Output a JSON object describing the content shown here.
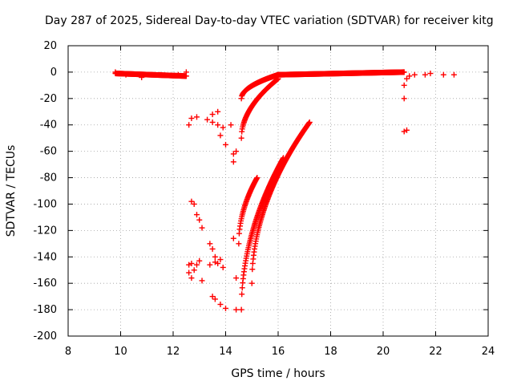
{
  "chart_data": {
    "type": "scatter",
    "title": "Day 287 of 2025, Sidereal Day-to-day VTEC variation (SDTVAR) for receiver kitg",
    "xlabel": "GPS time / hours",
    "ylabel": "SDTVAR / TECUs",
    "xlim": [
      8,
      24
    ],
    "ylim": [
      -200,
      20
    ],
    "xticks": [
      8,
      10,
      12,
      14,
      16,
      18,
      20,
      22,
      24
    ],
    "yticks": [
      20,
      0,
      -20,
      -40,
      -60,
      -80,
      -100,
      -120,
      -140,
      -160,
      -180,
      -200
    ],
    "grid": true,
    "marker": "+",
    "color": "#ff0000",
    "segments": [
      {
        "name": "near-zero band early",
        "x": [
          9.8,
          12.5
        ],
        "y": [
          -1,
          -3
        ]
      },
      {
        "name": "near-zero band late",
        "x": [
          16.0,
          20.8
        ],
        "y": [
          -2,
          0
        ]
      },
      {
        "name": "recovery arc upper",
        "x": [
          14.6,
          16.0
        ],
        "y": [
          -20,
          -2
        ]
      },
      {
        "name": "recovery arc middle",
        "x": [
          14.6,
          16.0
        ],
        "y": [
          -50,
          -5
        ]
      },
      {
        "name": "descending arc 1",
        "x": [
          14.5,
          15.2
        ],
        "y": [
          -130,
          -80
        ]
      },
      {
        "name": "descending arc 2",
        "x": [
          14.6,
          16.2
        ],
        "y": [
          -180,
          -65
        ]
      },
      {
        "name": "descending arc 3",
        "x": [
          15.0,
          17.2
        ],
        "y": [
          -160,
          -38
        ]
      }
    ],
    "scattered_points": [
      [
        9.8,
        0
      ],
      [
        10.2,
        -2
      ],
      [
        10.8,
        -4
      ],
      [
        11.5,
        -2
      ],
      [
        12.2,
        -2
      ],
      [
        12.5,
        0
      ],
      [
        12.6,
        -40
      ],
      [
        12.7,
        -35
      ],
      [
        12.9,
        -34
      ],
      [
        13.3,
        -36
      ],
      [
        13.5,
        -32
      ],
      [
        13.7,
        -30
      ],
      [
        13.5,
        -38
      ],
      [
        13.7,
        -40
      ],
      [
        13.8,
        -48
      ],
      [
        13.9,
        -42
      ],
      [
        14.0,
        -55
      ],
      [
        14.2,
        -40
      ],
      [
        14.3,
        -62
      ],
      [
        14.3,
        -68
      ],
      [
        14.4,
        -60
      ],
      [
        12.7,
        -98
      ],
      [
        12.8,
        -100
      ],
      [
        12.9,
        -108
      ],
      [
        13.0,
        -112
      ],
      [
        13.1,
        -118
      ],
      [
        12.6,
        -146
      ],
      [
        12.7,
        -145
      ],
      [
        12.8,
        -150
      ],
      [
        12.9,
        -146
      ],
      [
        13.0,
        -143
      ],
      [
        12.6,
        -152
      ],
      [
        12.7,
        -156
      ],
      [
        13.1,
        -158
      ],
      [
        13.4,
        -130
      ],
      [
        13.5,
        -134
      ],
      [
        13.6,
        -140
      ],
      [
        13.7,
        -145
      ],
      [
        13.8,
        -142
      ],
      [
        13.9,
        -148
      ],
      [
        13.4,
        -146
      ],
      [
        13.6,
        -144
      ],
      [
        13.5,
        -170
      ],
      [
        13.6,
        -172
      ],
      [
        13.8,
        -176
      ],
      [
        14.0,
        -179
      ],
      [
        14.3,
        -126
      ],
      [
        14.4,
        -156
      ],
      [
        14.4,
        -180
      ],
      [
        20.8,
        -10
      ],
      [
        20.8,
        -20
      ],
      [
        20.9,
        -44
      ],
      [
        20.8,
        -45
      ],
      [
        20.9,
        -5
      ],
      [
        21.0,
        -3
      ],
      [
        21.2,
        -2
      ],
      [
        21.6,
        -2
      ],
      [
        21.8,
        -1
      ],
      [
        22.3,
        -2
      ],
      [
        22.7,
        -2
      ]
    ]
  }
}
